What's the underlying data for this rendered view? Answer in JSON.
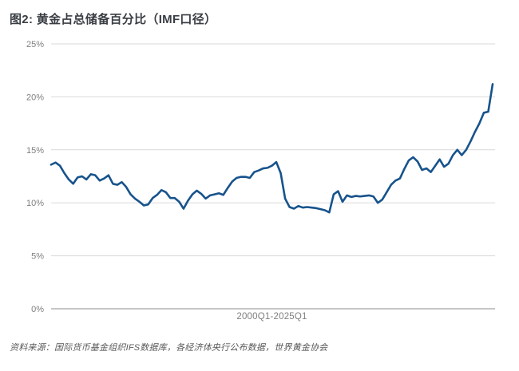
{
  "source_note": "资料来源：国际货币基金组织IFS数据库，各经济体央行公布数据，世界黄金协会",
  "chart_data": {
    "type": "line",
    "title": "图2: 黄金占总储备百分比（IMF口径）",
    "xlabel": "2000Q1-2025Q1",
    "ylabel": "",
    "ylim": [
      0,
      25
    ],
    "yticks": [
      0,
      5,
      10,
      15,
      20,
      25
    ],
    "ytick_labels": [
      "0%",
      "5%",
      "10%",
      "15%",
      "20%",
      "25%"
    ],
    "grid": "horizontal",
    "legend": "none",
    "colors": {
      "line": "#17538C",
      "gridline": "#D9D9D9",
      "axis": "#8C8C8C",
      "tick_label": "#7F7F7F",
      "title": "#3A3E44",
      "source": "#595959"
    },
    "x_range": {
      "start": "2000Q1",
      "end": "2025Q1",
      "frequency": "quarterly",
      "points": 101
    },
    "series": [
      {
        "name": "黄金占总储备百分比",
        "values": [
          13.6,
          13.8,
          13.5,
          12.8,
          12.2,
          11.8,
          12.4,
          12.5,
          12.2,
          12.7,
          12.6,
          12.1,
          12.3,
          12.6,
          11.8,
          11.7,
          11.95,
          11.5,
          10.8,
          10.4,
          10.1,
          9.75,
          9.85,
          10.45,
          10.75,
          11.2,
          11.0,
          10.45,
          10.45,
          10.1,
          9.45,
          10.2,
          10.8,
          11.15,
          10.85,
          10.4,
          10.7,
          10.8,
          10.9,
          10.75,
          11.4,
          12.0,
          12.35,
          12.45,
          12.45,
          12.35,
          12.9,
          13.05,
          13.25,
          13.3,
          13.5,
          13.85,
          12.8,
          10.4,
          9.6,
          9.45,
          9.7,
          9.55,
          9.6,
          9.55,
          9.5,
          9.4,
          9.3,
          9.1,
          10.8,
          11.1,
          10.1,
          10.7,
          10.55,
          10.65,
          10.6,
          10.65,
          10.7,
          10.6,
          10.0,
          10.3,
          11.0,
          11.7,
          12.1,
          12.3,
          13.2,
          14.0,
          14.3,
          13.9,
          13.1,
          13.25,
          12.9,
          13.5,
          14.1,
          13.4,
          13.7,
          14.5,
          15.0,
          14.5,
          15.0,
          15.8,
          16.7,
          17.5,
          18.5,
          18.6,
          21.2
        ]
      }
    ]
  }
}
